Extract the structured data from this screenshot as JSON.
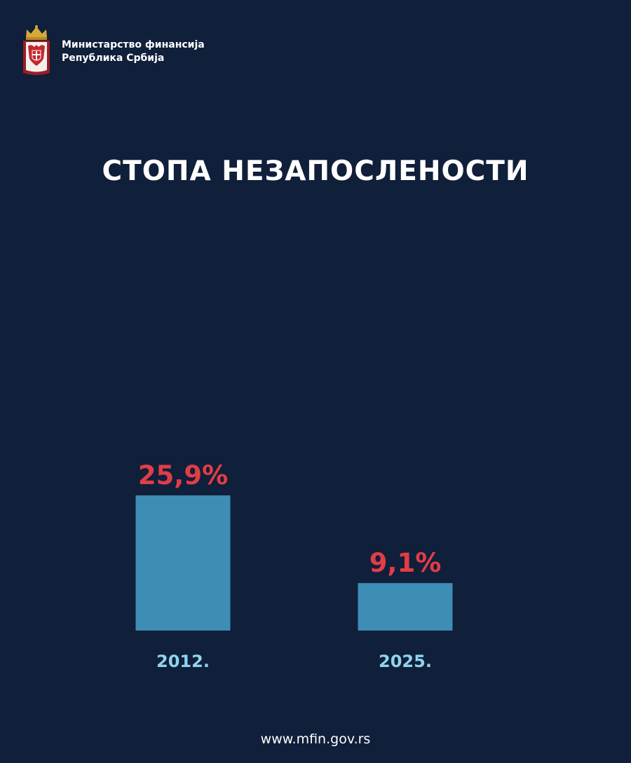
{
  "header": {
    "ministry_line1": "Министарство финансија",
    "ministry_line2": "Република Србија"
  },
  "footer": {
    "url": "www.mfin.gov.rs"
  },
  "colors": {
    "background": "#101f3a",
    "bar": "#3e8db5",
    "value_label": "#e23d47",
    "category_label": "#8fd4ef"
  },
  "chart_data": {
    "type": "bar",
    "title": "СТОПА НЕЗАПОСЛЕНОСТИ",
    "categories": [
      "2012.",
      "2025."
    ],
    "values": [
      25.9,
      9.1
    ],
    "value_labels": [
      "25,9%",
      "9,1%"
    ],
    "unit": "%",
    "grid": false
  }
}
